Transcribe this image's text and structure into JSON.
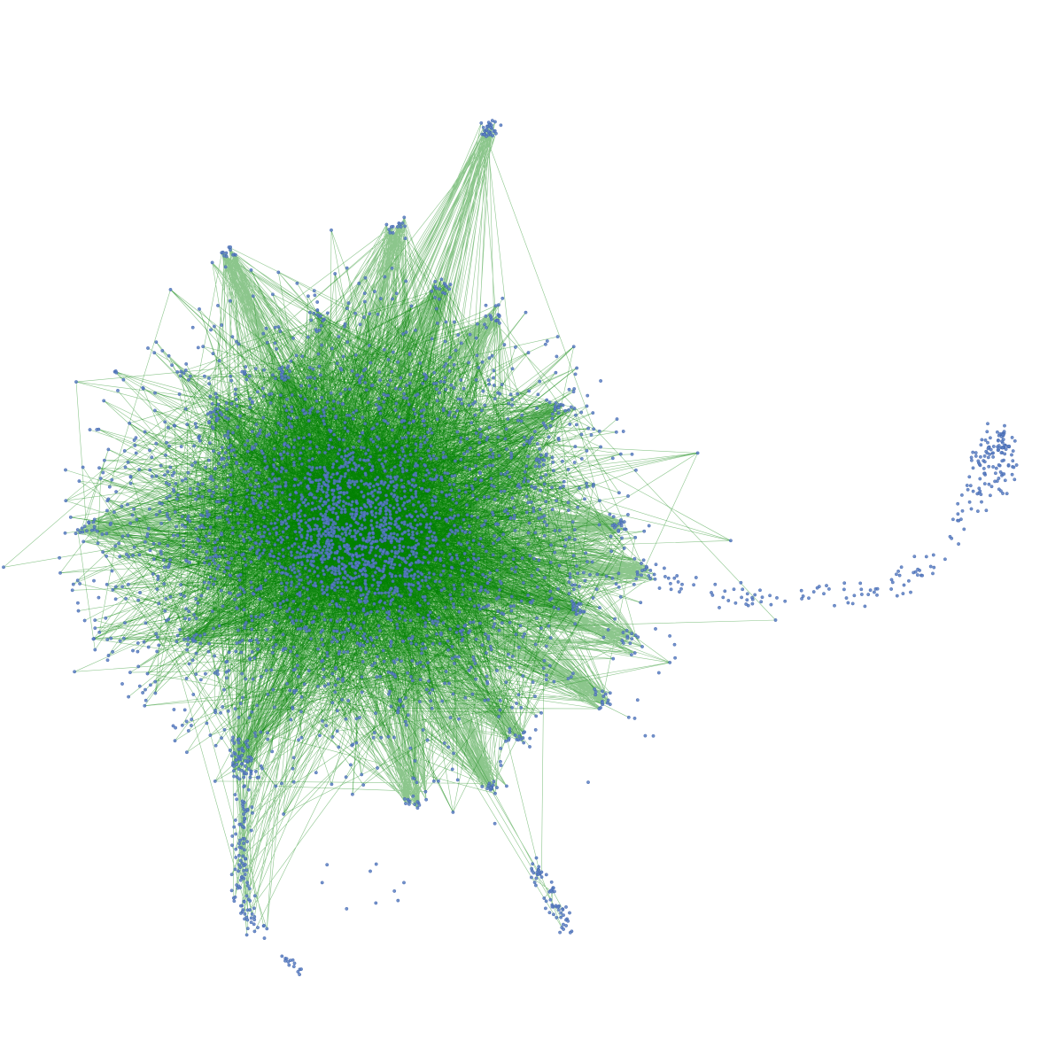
{
  "diagram": {
    "type": "network-graph",
    "colors": {
      "background": "#ffffff",
      "edge": "#008000",
      "node_fill": "#5b7fc3",
      "node_stroke": "#3b5ea8"
    },
    "node_glyph": "small-circle-icon",
    "edge_glyph": "straight-line",
    "text": []
  }
}
